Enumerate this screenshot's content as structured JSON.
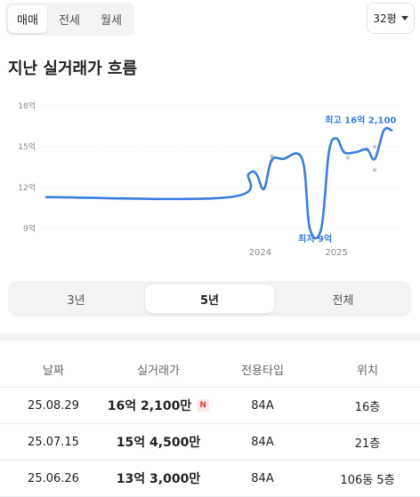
{
  "tabs": [
    {
      "label": "매매",
      "active": true
    },
    {
      "label": "전세",
      "active": false
    },
    {
      "label": "월세",
      "active": false
    }
  ],
  "size_selector": {
    "value": "32평"
  },
  "section_title": "지난 실거래가 흐름",
  "chart_data": {
    "type": "line",
    "y_ticks": [
      "18억",
      "15억",
      "12억",
      "9억"
    ],
    "y_tick_values": [
      18,
      15,
      12,
      9
    ],
    "x_ticks": [
      "2024",
      "2025"
    ],
    "ylim": [
      9,
      18
    ],
    "series": [
      {
        "values": [
          {
            "x": 2021.2,
            "y": 11.3
          },
          {
            "x": 2023.6,
            "y": 11.3
          },
          {
            "x": 2023.85,
            "y": 13.0
          },
          {
            "x": 2023.95,
            "y": 13.0
          },
          {
            "x": 2024.05,
            "y": 11.9
          },
          {
            "x": 2024.15,
            "y": 14.0
          },
          {
            "x": 2024.3,
            "y": 14.1
          },
          {
            "x": 2024.55,
            "y": 14.1
          },
          {
            "x": 2024.65,
            "y": 9.0
          },
          {
            "x": 2024.8,
            "y": 9.0
          },
          {
            "x": 2024.9,
            "y": 14.6
          },
          {
            "x": 2025.0,
            "y": 15.6
          },
          {
            "x": 2025.1,
            "y": 14.6
          },
          {
            "x": 2025.25,
            "y": 14.6
          },
          {
            "x": 2025.4,
            "y": 14.8
          },
          {
            "x": 2025.5,
            "y": 14.1
          },
          {
            "x": 2025.62,
            "y": 16.2
          },
          {
            "x": 2025.72,
            "y": 16.2
          }
        ]
      }
    ],
    "scatter_points": [
      {
        "x": 2024.15,
        "y": 14.3
      },
      {
        "x": 2024.15,
        "y": 14.0
      },
      {
        "x": 2025.15,
        "y": 14.2
      },
      {
        "x": 2025.4,
        "y": 14.8
      },
      {
        "x": 2025.5,
        "y": 15.0
      },
      {
        "x": 2025.5,
        "y": 13.3
      }
    ],
    "annotations": [
      {
        "label": "최고 16억 2,100",
        "x": 2025.62,
        "y": 16.21
      },
      {
        "label": "최저 9억",
        "x": 2024.72,
        "y": 9.0
      }
    ]
  },
  "range_tabs": [
    {
      "label": "3년",
      "active": false
    },
    {
      "label": "5년",
      "active": true
    },
    {
      "label": "전체",
      "active": false
    }
  ],
  "table": {
    "headers": [
      "날짜",
      "실거래가",
      "전용타입",
      "위치"
    ],
    "rows": [
      {
        "date": "25.08.29",
        "price": "16억 2,100만",
        "new_badge": "N",
        "type": "84A",
        "location": "16층"
      },
      {
        "date": "25.07.15",
        "price": "15억 4,500만",
        "new_badge": "",
        "type": "84A",
        "location": "21층"
      },
      {
        "date": "25.06.26",
        "price": "13억 3,000만",
        "new_badge": "",
        "type": "84A",
        "location": "106동 5층"
      }
    ]
  },
  "colors": {
    "accent": "#3b7ddd",
    "grid": "#e6e9ec",
    "scatter": "#c5c9ce",
    "badge": "#e53935"
  }
}
